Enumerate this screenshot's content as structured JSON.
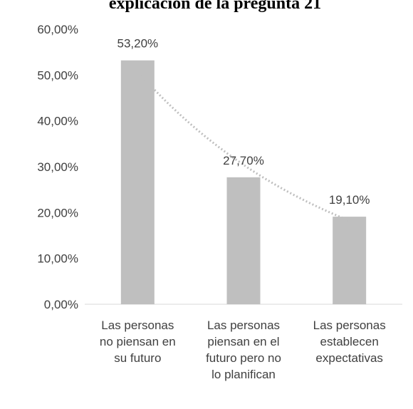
{
  "chart_data": {
    "type": "bar",
    "title": "explicación de la pregunta 21",
    "categories": [
      "Las personas no piensan en su futuro",
      "Las personas piensan en el futuro pero no lo planifican",
      "Las personas establecen expectativas"
    ],
    "values": [
      53.2,
      27.7,
      19.1
    ],
    "value_labels": [
      "53,20%",
      "27,70%",
      "19,10%"
    ],
    "color": "#bfbfbf",
    "trendline": "exponential",
    "ylim": [
      0,
      60
    ],
    "yticks": [
      {
        "value": 0,
        "label": "0,00%"
      },
      {
        "value": 10,
        "label": "10,00%"
      },
      {
        "value": 20,
        "label": "20,00%"
      },
      {
        "value": 30,
        "label": "30,00%"
      },
      {
        "value": 40,
        "label": "40,00%"
      },
      {
        "value": 50,
        "label": "50,00%"
      },
      {
        "value": 60,
        "label": "60,00%"
      }
    ]
  }
}
